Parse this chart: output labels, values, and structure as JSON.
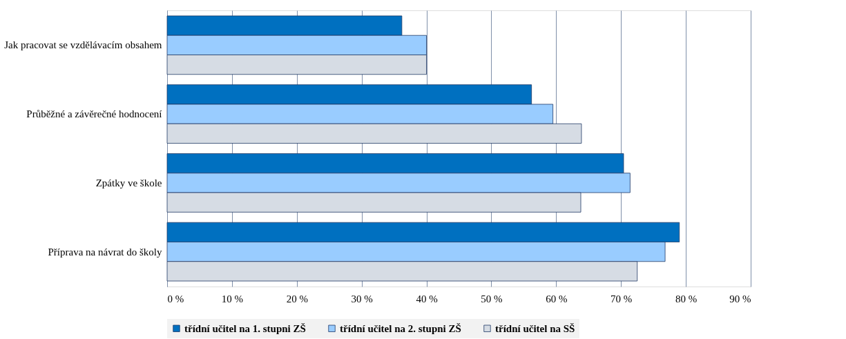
{
  "chart_data": {
    "type": "bar",
    "orientation": "horizontal",
    "categories": [
      "Jak pracovat se vzdělávacím obsahem",
      "Průběžné a závěrečné hodnocení",
      "Zpátky ve škole",
      "Příprava na návrat do školy"
    ],
    "series": [
      {
        "name": "třídní učitel na 1. stupni ZŠ",
        "color": "#0070c0",
        "values": [
          36.2,
          56.2,
          70.4,
          79.0
        ]
      },
      {
        "name": "třídní učitel na 2. stupni ZŠ",
        "color": "#99ccff",
        "values": [
          40.0,
          59.5,
          71.4,
          76.8
        ]
      },
      {
        "name": "třídní učitel na SŠ",
        "color": "#d6dce4",
        "values": [
          40.0,
          63.9,
          63.8,
          72.5
        ]
      }
    ],
    "xlim": [
      0,
      90
    ],
    "xticks": [
      {
        "value": 0,
        "label": "0 %"
      },
      {
        "value": 10,
        "label": "10 %"
      },
      {
        "value": 20,
        "label": "20 %"
      },
      {
        "value": 30,
        "label": "30 %"
      },
      {
        "value": 40,
        "label": "40 %"
      },
      {
        "value": 50,
        "label": "50 %"
      },
      {
        "value": 60,
        "label": "60 %"
      },
      {
        "value": 70,
        "label": "70 %"
      },
      {
        "value": 80,
        "label": "80 %"
      },
      {
        "value": 90,
        "label": "90 %"
      }
    ],
    "grid": "x",
    "legend": "bottom"
  }
}
